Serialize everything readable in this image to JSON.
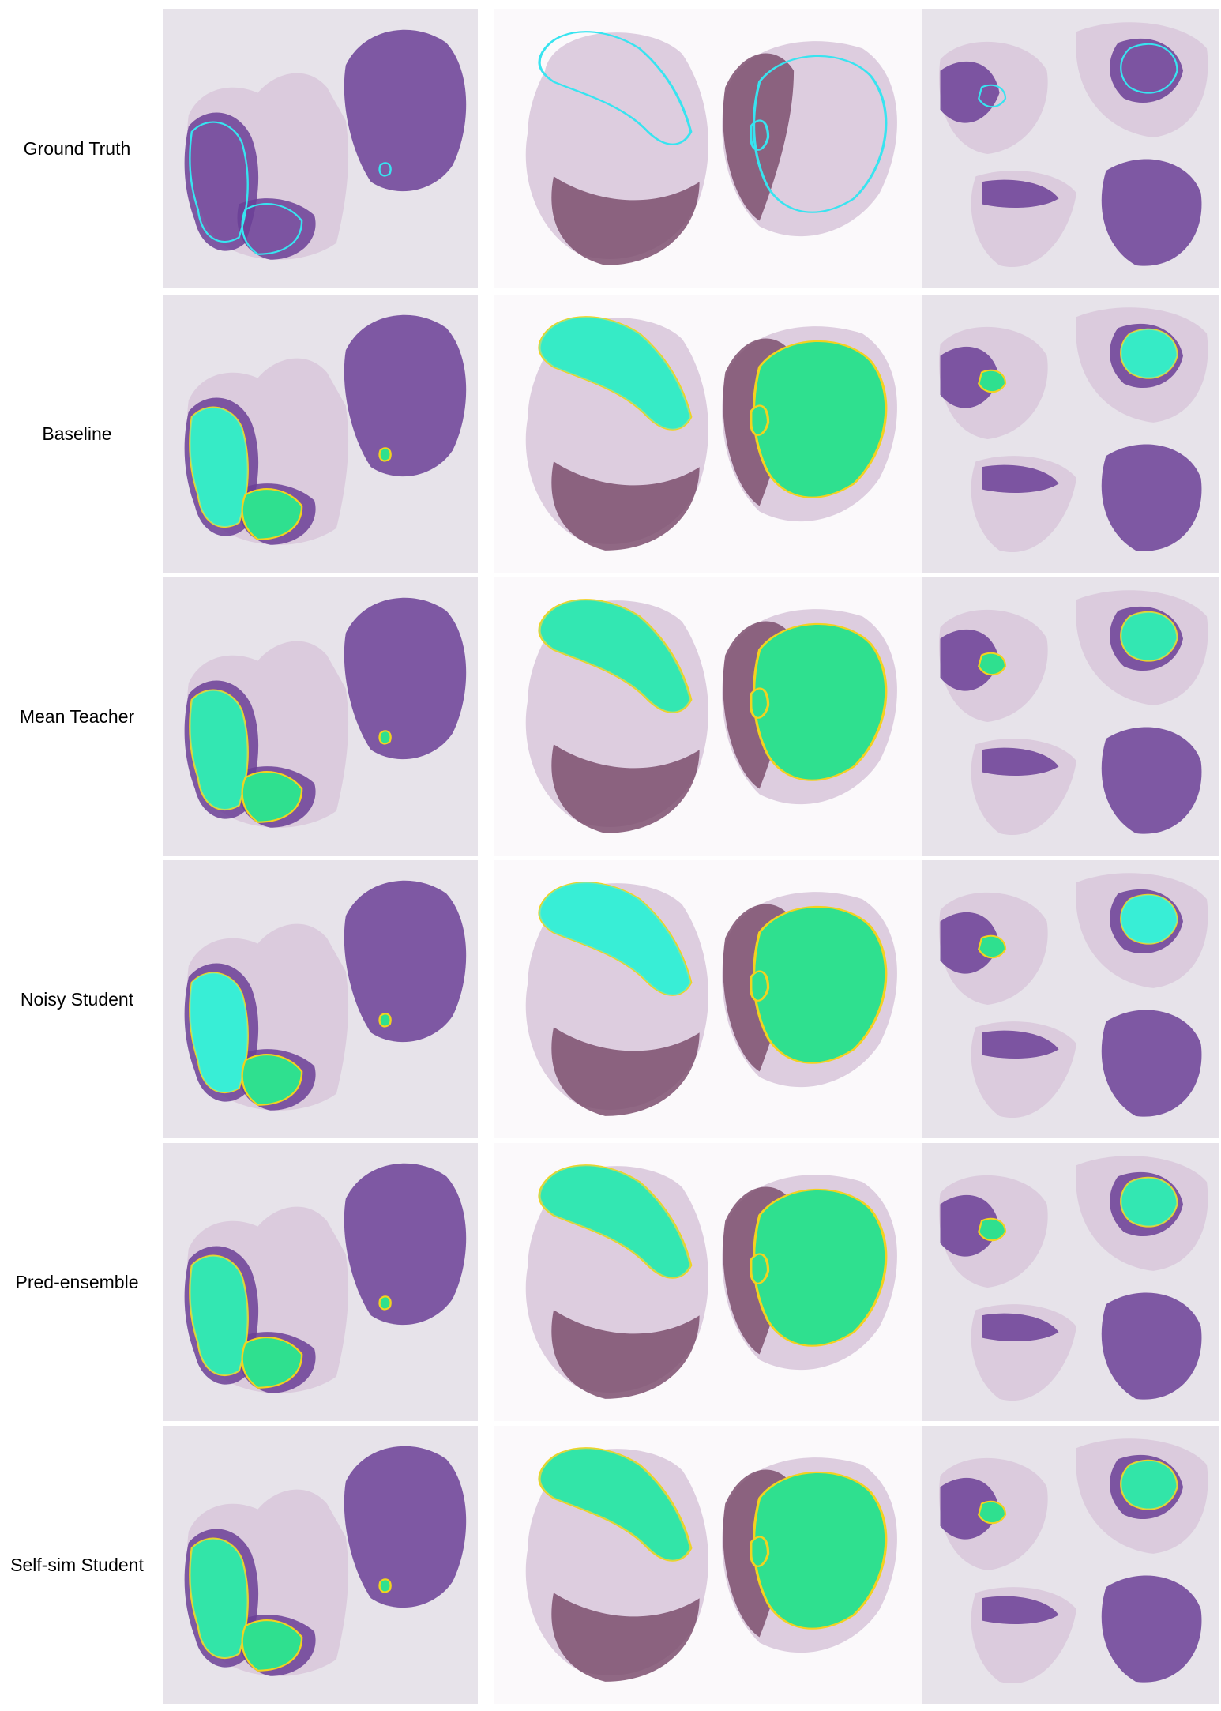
{
  "rows": [
    {
      "label": "Ground Truth"
    },
    {
      "label": "Baseline"
    },
    {
      "label": "Mean Teacher"
    },
    {
      "label": "Noisy Student"
    },
    {
      "label": "Pred-ensemble"
    },
    {
      "label": "Self-sim Student"
    }
  ],
  "colors": {
    "panel_bg": "#e7e3ea",
    "slide_bg": "#fbf9fb",
    "tissue_light": "#d9c8dc",
    "tissue_dark": "#6b3f97",
    "tissue_mauve": "#7d4f6e",
    "ground_truth_outline": "#37e4f0",
    "pred_green": "#2fe08f",
    "pred_cyan": "#3cf4f4",
    "pred_yellow": "#f2d21f"
  }
}
